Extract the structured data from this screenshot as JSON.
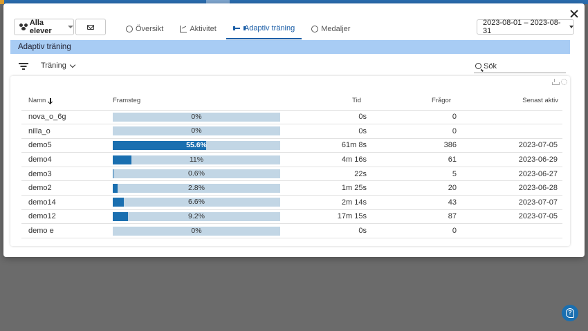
{
  "toolbar": {
    "students_label": "Alla elever",
    "date_range": "2023-08-01 – 2023-08-31"
  },
  "tabs": [
    {
      "label": "Översikt"
    },
    {
      "label": "Aktivitet"
    },
    {
      "label": "Adaptiv träning"
    },
    {
      "label": "Medaljer"
    }
  ],
  "section": {
    "title": "Adaptiv träning"
  },
  "filter": {
    "type_label": "Träning",
    "search_placeholder": "Sök"
  },
  "table": {
    "headers": {
      "name": "Namn",
      "progress": "Framsteg",
      "time": "Tid",
      "questions": "Frågor",
      "last_active": "Senast aktiv"
    },
    "rows": [
      {
        "name": "nova_o_6g",
        "progress": 0,
        "progress_label": "0%",
        "time": "0s",
        "questions": "0",
        "last_active": ""
      },
      {
        "name": "nilla_o",
        "progress": 0,
        "progress_label": "0%",
        "time": "0s",
        "questions": "0",
        "last_active": ""
      },
      {
        "name": "demo5",
        "progress": 55.6,
        "progress_label": "55.6%",
        "time": "61m 8s",
        "questions": "386",
        "last_active": "2023-07-05"
      },
      {
        "name": "demo4",
        "progress": 11,
        "progress_label": "11%",
        "time": "4m 16s",
        "questions": "61",
        "last_active": "2023-06-29"
      },
      {
        "name": "demo3",
        "progress": 0.6,
        "progress_label": "0.6%",
        "time": "22s",
        "questions": "5",
        "last_active": "2023-06-27"
      },
      {
        "name": "demo2",
        "progress": 2.8,
        "progress_label": "2.8%",
        "time": "1m 25s",
        "questions": "20",
        "last_active": "2023-06-28"
      },
      {
        "name": "demo14",
        "progress": 6.6,
        "progress_label": "6.6%",
        "time": "2m 14s",
        "questions": "43",
        "last_active": "2023-07-07"
      },
      {
        "name": "demo12",
        "progress": 9.2,
        "progress_label": "9.2%",
        "time": "17m 15s",
        "questions": "87",
        "last_active": "2023-07-05"
      },
      {
        "name": "demo e",
        "progress": 0,
        "progress_label": "0%",
        "time": "0s",
        "questions": "0",
        "last_active": ""
      }
    ]
  },
  "colors": {
    "accent": "#1a5da6",
    "progress_fill": "#1a6fb0",
    "progress_track": "#c2d6e5",
    "section_header": "#a8ccf4"
  }
}
